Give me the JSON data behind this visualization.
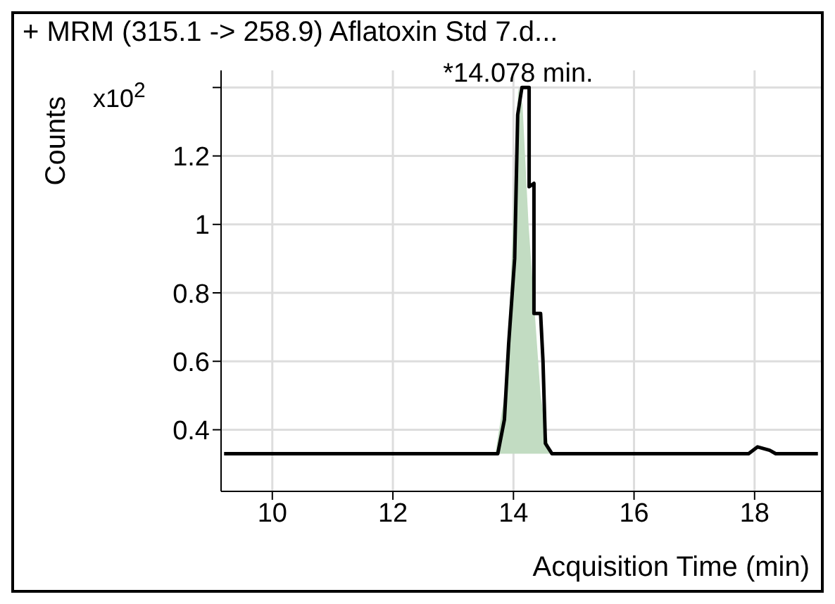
{
  "chart_data": {
    "type": "line",
    "title": "+ MRM (315.1 -> 258.9) Aflatoxin Std 7.d...",
    "xlabel": "Acquisition Time (min)",
    "ylabel": "Counts",
    "annotations": [
      "x10$^{2}$",
      {
        "text": "*14.078 min.",
        "x": 14.078,
        "y": 1.4
      }
    ],
    "series": [
      {
        "type": "area",
        "color": "#c2dcc2",
        "x": [
          13.7,
          13.85,
          13.95,
          14.02,
          14.08,
          14.15,
          14.25,
          14.35,
          14.45,
          14.6
        ],
        "values": [
          0.33,
          0.5,
          0.8,
          1.15,
          1.4,
          1.35,
          1.0,
          0.75,
          0.5,
          0.33
        ]
      },
      {
        "color": "#000000",
        "x": [
          9.2,
          13.74,
          13.85,
          13.92,
          14.02,
          14.07,
          14.14,
          14.26,
          14.26,
          14.34,
          14.34,
          14.45,
          14.49,
          14.53,
          14.64,
          17.9,
          18.05,
          18.25,
          18.35,
          19.05
        ],
        "values": [
          0.33,
          0.33,
          0.43,
          0.65,
          0.9,
          1.32,
          1.4,
          1.4,
          1.11,
          1.12,
          0.74,
          0.74,
          0.6,
          0.36,
          0.33,
          0.33,
          0.35,
          0.34,
          0.33,
          0.33
        ]
      }
    ],
    "xlim": [
      9.15,
      19.1
    ],
    "xticks": [
      10,
      12,
      14,
      16,
      18
    ],
    "ylim": [
      0.22,
      1.45
    ],
    "yticks": [
      {
        "value": 0.4,
        "label": "0.4"
      },
      {
        "value": 0.6,
        "label": "0.6"
      },
      {
        "value": 0.8,
        "label": "0.8"
      },
      1,
      1.2,
      {
        "value": 1.4,
        "label": null
      }
    ],
    "grid": true,
    "marker": "none",
    "line_style": "solid"
  }
}
